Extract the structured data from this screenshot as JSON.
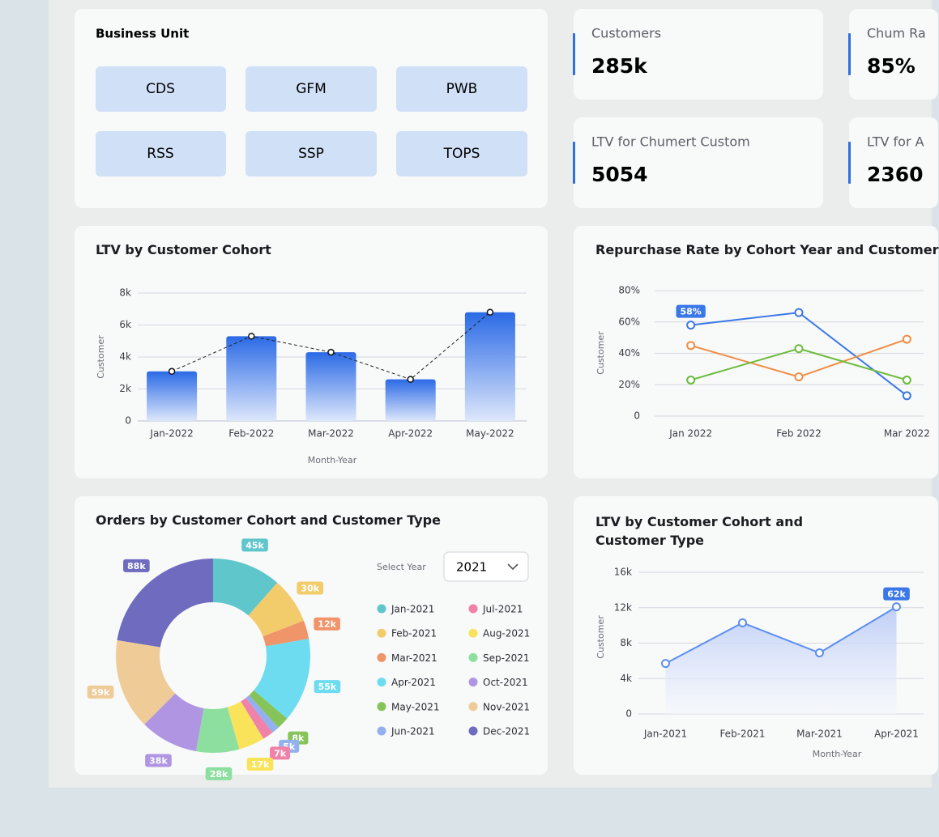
{
  "business_unit": {
    "title": "Business Unit",
    "units": [
      "CDS",
      "GFM",
      "PWB",
      "RSS",
      "SSP",
      "TOPS"
    ]
  },
  "kpis": [
    {
      "label": "Customers",
      "value": "285k"
    },
    {
      "label": "Chum Ra",
      "value": "85%"
    },
    {
      "label": "LTV for Chumert Custom",
      "value": "5054"
    },
    {
      "label": "LTV for A",
      "value": "2360"
    }
  ],
  "chart_data": [
    {
      "type": "bar",
      "title": "LTV by Customer Cohort",
      "x_label": "Month-Year",
      "y_label": "Customer",
      "categories": [
        "Jan-2022",
        "Feb-2022",
        "Mar-2022",
        "Apr-2022",
        "May-2022"
      ],
      "values": [
        3100,
        5300,
        4300,
        2600,
        6800
      ],
      "color": "#2b6ae6",
      "trend_line": true,
      "ylim": [
        0,
        8000
      ],
      "yticks": [
        0,
        {
          "value": 2000,
          "label": "2k"
        },
        {
          "value": 4000,
          "label": "4k"
        },
        {
          "value": 6000,
          "label": "6k"
        },
        {
          "value": 8000,
          "label": "8k"
        }
      ],
      "grid": true
    },
    {
      "type": "line",
      "title": "Repurchase Rate by Cohort Year and Customer",
      "y_label": "Customer",
      "categories": [
        "Jan 2022",
        "Feb 2022",
        "Mar 2022"
      ],
      "series": [
        {
          "color": "#3b78e7",
          "values": [
            58,
            66,
            13
          ],
          "value_labels": [
            "58%",
            null,
            null
          ]
        },
        {
          "color": "#ef8d45",
          "values": [
            45,
            25,
            49
          ]
        },
        {
          "color": "#6cbb3c",
          "values": [
            23,
            43,
            23
          ]
        }
      ],
      "ylim": [
        0,
        80
      ],
      "yticks": [
        0,
        {
          "value": 20,
          "label": "20%"
        },
        {
          "value": 40,
          "label": "40%"
        },
        {
          "value": 60,
          "label": "60%"
        },
        {
          "value": 80,
          "label": "80%"
        }
      ],
      "grid": true
    },
    {
      "type": "pie",
      "title": "Orders by Customer Cohort and Customer Type",
      "select_label": "Select Year",
      "selected_year": "2021",
      "categories": [
        "Jan-2021",
        "Feb-2021",
        "Mar-2021",
        "Apr-2021",
        "May-2021",
        "Jun-2021",
        "Jul-2021",
        "Aug-2021",
        "Sep-2021",
        "Oct-2021",
        "Nov-2021",
        "Dec-2021"
      ],
      "values": [
        45000,
        30000,
        12000,
        55000,
        8000,
        5000,
        7000,
        17000,
        28000,
        38000,
        59000,
        88000
      ],
      "value_labels": [
        "45k",
        "30k",
        "12k",
        "55k",
        "8k",
        "5k",
        "7k",
        "17k",
        "28k",
        "38k",
        "59k",
        "88k"
      ],
      "colors": [
        "#5fc6cc",
        "#f2cc6b",
        "#f0946a",
        "#6ddcf0",
        "#86c45a",
        "#93b0ef",
        "#f081a8",
        "#f9e35b",
        "#8ddfa0",
        "#b095e3",
        "#efcb98",
        "#6f6bbf"
      ]
    },
    {
      "type": "area",
      "title": "LTV by Customer Cohort and Customer Type",
      "x_label": "Month-Year",
      "y_label": "Customer",
      "categories": [
        "Jan-2021",
        "Feb-2021",
        "Mar-2021",
        "Apr-2021"
      ],
      "values": [
        5700,
        10300,
        6900,
        12100
      ],
      "color": "#5b8ef0",
      "annotation": "62k",
      "ylim": [
        0,
        16000
      ],
      "yticks": [
        0,
        {
          "value": 4000,
          "label": "4k"
        },
        {
          "value": 8000,
          "label": "8k"
        },
        {
          "value": 12000,
          "label": "12k"
        },
        {
          "value": 16000,
          "label": "16k"
        }
      ],
      "grid": true
    }
  ]
}
